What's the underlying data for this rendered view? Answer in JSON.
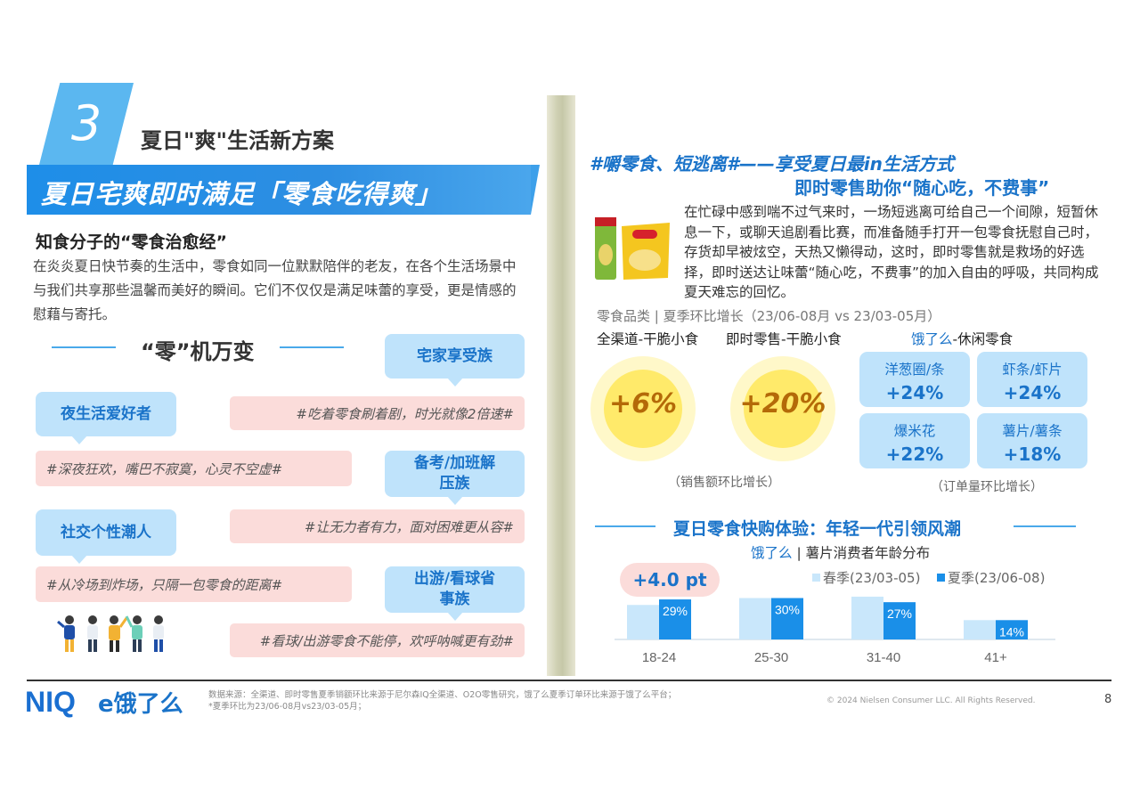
{
  "left": {
    "section_number": "3",
    "section_title": "夏日\"爽\"生活新方案",
    "banner_title": "夏日宅爽即时满足「零食吃得爽」",
    "sub_heading": "知食分子的“零食治愈经”",
    "intro": "在炎炎夏日快节奏的生活中，零食如同一位默默陪伴的老友，在各个生活场景中与我们共享那些温馨而美好的瞬间。它们不仅仅是满足味蕾的享受，更是情感的慰藉与寄托。",
    "mid_title": "“零”机万变",
    "bubbles": [
      "宅家享受族",
      "夜生活爱好者",
      "备考/加班解压族",
      "社交个性潮人",
      "出游/看球省事族"
    ],
    "tags": [
      "#吃着零食刷着剧，时光就像2倍速#",
      "#深夜狂欢，嘴巴不寂寞，心灵不空虚#",
      "#让无力者有力，面对困难更从容#",
      "#从冷场到炸场，只隔一包零食的距离#",
      "#看球/出游零食不能停，欢呼呐喊更有劲#"
    ]
  },
  "right": {
    "headline1": "#嚼零食、短逃离#——享受夏日最in生活方式",
    "headline2": "即时零售助你“随心吃，不费事”",
    "body": "在忙碌中感到喘不过气来时，一场短逃离可给自己一个间隙，短暂休息一下，或聊天追剧看比赛，而准备随手打开一包零食抚慰自己时，存货却早被炫空，天热又懒得动，这时，即时零售就是救场的好选择，即时送达让味蕾“随心吃，不费事”的加入自由的呼吸，共同构成夏天难忘的回忆。",
    "meta": "零食品类 | 夏季环比增长（23/06-08月 vs 23/03-05月）",
    "col1": "全渠道-干脆小食",
    "col2": "即时零售-干脆小食",
    "col3_brand": "饿了么",
    "col3_rest": "-休闲零食",
    "circles": [
      {
        "value": "+6%"
      },
      {
        "value": "+20%"
      }
    ],
    "sales_note": "（销售额环比增长）",
    "tiles": [
      {
        "name": "洋葱圈/条",
        "pct": "+24%"
      },
      {
        "name": "虾条/虾片",
        "pct": "+24%"
      },
      {
        "name": "爆米花",
        "pct": "+22%"
      },
      {
        "name": "薯片/薯条",
        "pct": "+18%"
      }
    ],
    "order_note": "（订单量环比增长）",
    "chart_title": "夏日零食快购体验：年轻一代引领风潮",
    "chart_sub_brand": "饿了么",
    "chart_sub_rest": " | 薯片消费者年龄分布",
    "pill": "+4.0 pt"
  },
  "chart_data": {
    "type": "bar",
    "title": "",
    "categories": [
      "18-24",
      "25-30",
      "31-40",
      "41+"
    ],
    "series": [
      {
        "name": "春季(23/03-05)",
        "values": [
          25,
          30,
          31,
          14
        ],
        "color": "#c9e7fb"
      },
      {
        "name": "夏季(23/06-08)",
        "values": [
          29,
          30,
          27,
          14
        ],
        "color": "#1a8fe8",
        "labels": [
          "29%",
          "30%",
          "27%",
          "14%"
        ]
      }
    ],
    "legend_position": "top-right"
  },
  "footer": {
    "niq": "NIQ",
    "eleme": "e饿了么",
    "source1": "数据来源：全渠道、即时零售夏季销额环比来源于尼尔森IQ全渠道、O2O零售研究，饿了么夏季订单环比来源于饿了么平台；",
    "source2": "*夏季环比为23/06-08月vs23/03-05月；",
    "copyright": "© 2024 Nielsen Consumer LLC. All Rights Reserved.",
    "page": "8"
  }
}
